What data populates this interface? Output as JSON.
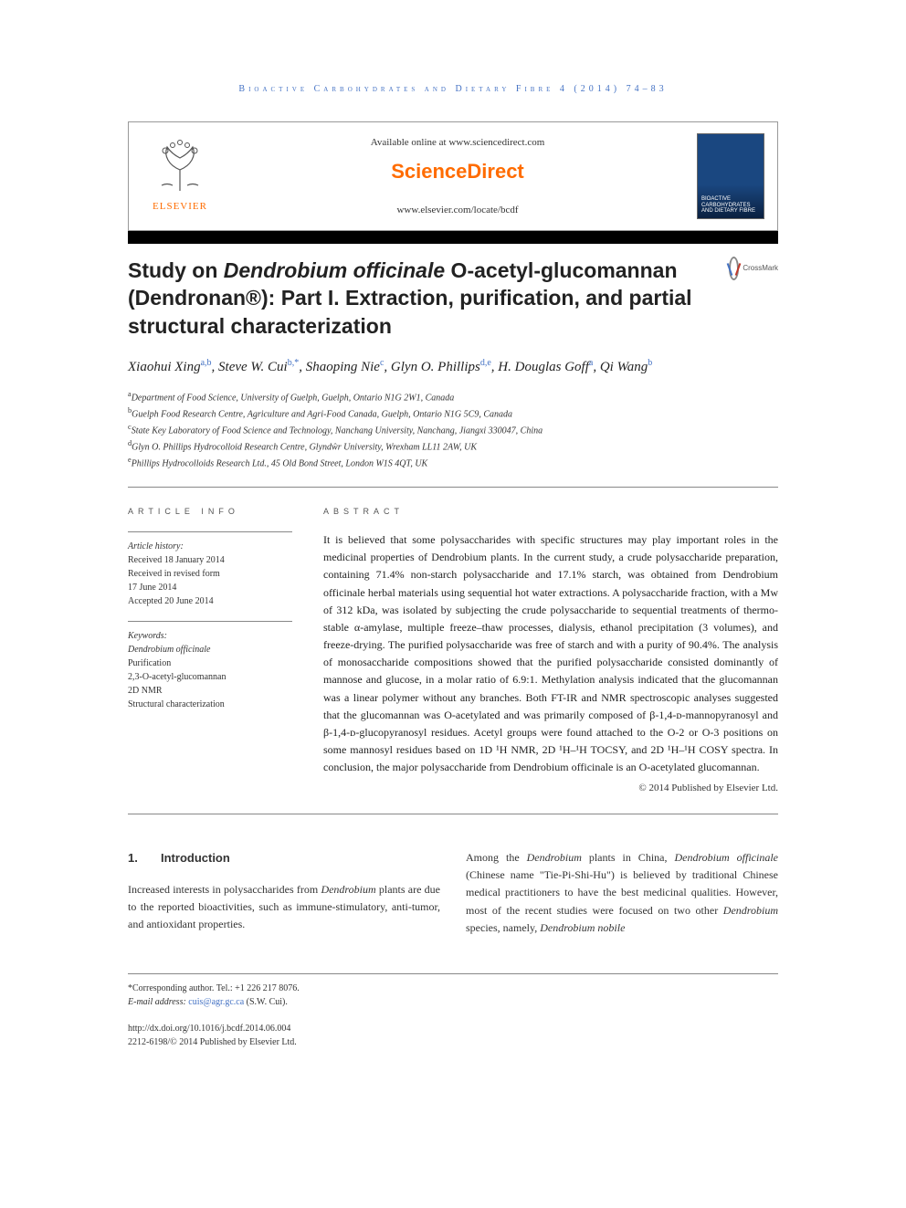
{
  "running_header": "Bioactive Carbohydrates and Dietary Fibre 4 (2014) 74–83",
  "masthead": {
    "available_text": "Available online at www.sciencedirect.com",
    "brand": "ScienceDirect",
    "journal_url": "www.elsevier.com/locate/bcdf",
    "elsevier": "ELSEVIER",
    "cover_text": "BIOACTIVE CARBOHYDRATES AND DIETARY FIBRE"
  },
  "title": {
    "pre": "Study on ",
    "ital": "Dendrobium officinale",
    "post": " O-acetyl-glucomannan (Dendronan®): Part I. Extraction, purification, and partial structural characterization"
  },
  "crossmark_label": "CrossMark",
  "authors_html": "Xiaohui Xing<sup class='sup-link'>a,b</sup>, Steve W. Cui<sup class='sup-link'>b,*</sup>, Shaoping Nie<sup class='sup-link'>c</sup>, Glyn O. Phillips<sup class='sup-link'>d,e</sup>, H. Douglas Goff<sup class='sup-link'>a</sup>, Qi Wang<sup class='sup-link'>b</sup>",
  "affiliations": [
    {
      "sup": "a",
      "text": "Department of Food Science, University of Guelph, Guelph, Ontario N1G 2W1, Canada"
    },
    {
      "sup": "b",
      "text": "Guelph Food Research Centre, Agriculture and Agri-Food Canada, Guelph, Ontario N1G 5C9, Canada"
    },
    {
      "sup": "c",
      "text": "State Key Laboratory of Food Science and Technology, Nanchang University, Nanchang, Jiangxi 330047, China"
    },
    {
      "sup": "d",
      "text": "Glyn O. Phillips Hydrocolloid Research Centre, Glyndŵr University, Wrexham LL11 2AW, UK"
    },
    {
      "sup": "e",
      "text": "Phillips Hydrocolloids Research Ltd., 45 Old Bond Street, London W1S 4QT, UK"
    }
  ],
  "info": {
    "heading": "article info",
    "history_label": "Article history:",
    "history": [
      "Received 18 January 2014",
      "Received in revised form",
      "17 June 2014",
      "Accepted 20 June 2014"
    ],
    "keywords_label": "Keywords:",
    "keywords": [
      "Dendrobium officinale",
      "Purification",
      "2,3-O-acetyl-glucomannan",
      "2D NMR",
      "Structural characterization"
    ]
  },
  "abstract": {
    "heading": "abstract",
    "text": "It is believed that some polysaccharides with specific structures may play important roles in the medicinal properties of Dendrobium plants. In the current study, a crude polysaccharide preparation, containing 71.4% non-starch polysaccharide and 17.1% starch, was obtained from Dendrobium officinale herbal materials using sequential hot water extractions. A polysaccharide fraction, with a Mw of 312 kDa, was isolated by subjecting the crude polysaccharide to sequential treatments of thermo-stable α-amylase, multiple freeze–thaw processes, dialysis, ethanol precipitation (3 volumes), and freeze-drying. The purified polysaccharide was free of starch and with a purity of 90.4%. The analysis of monosaccharide compositions showed that the purified polysaccharide consisted dominantly of mannose and glucose, in a molar ratio of 6.9:1. Methylation analysis indicated that the glucomannan was a linear polymer without any branches. Both FT-IR and NMR spectroscopic analyses suggested that the glucomannan was O-acetylated and was primarily composed of β-1,4-ᴅ-mannopyranosyl and β-1,4-ᴅ-glucopyranosyl residues. Acetyl groups were found attached to the O-2 or O-3 positions on some mannosyl residues based on 1D ¹H NMR, 2D ¹H–¹H TOCSY, and 2D ¹H–¹H COSY spectra. In conclusion, the major polysaccharide from Dendrobium officinale is an O-acetylated glucomannan.",
    "copyright": "© 2014 Published by Elsevier Ltd."
  },
  "section1": {
    "num": "1.",
    "title": "Introduction",
    "col1": "Increased interests in polysaccharides from Dendrobium plants are due to the reported bioactivities, such as immune-stimulatory, anti-tumor, and antioxidant properties.",
    "col2": "Among the Dendrobium plants in China, Dendrobium officinale (Chinese name \"Tie-Pi-Shi-Hu\") is believed by traditional Chinese medical practitioners to have the best medicinal qualities. However, most of the recent studies were focused on two other Dendrobium species, namely, Dendrobium nobile"
  },
  "footer": {
    "corr": "*Corresponding author. Tel.: +1 226 217 8076.",
    "email_label": "E-mail address:",
    "email": "cuis@agr.gc.ca",
    "email_suffix": "(S.W. Cui).",
    "doi": "http://dx.doi.org/10.1016/j.bcdf.2014.06.004",
    "issn": "2212-6198/© 2014 Published by Elsevier Ltd."
  },
  "colors": {
    "accent_orange": "#ff6c00",
    "link_blue": "#4472c4"
  }
}
